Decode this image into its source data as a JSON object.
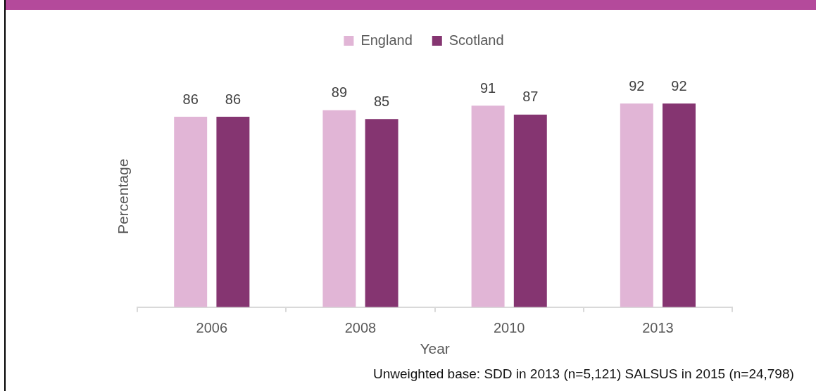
{
  "chart_data": {
    "type": "bar",
    "categories": [
      "2006",
      "2008",
      "2010",
      "2013"
    ],
    "series": [
      {
        "name": "England",
        "color": "#e1b5d6",
        "values": [
          86,
          89,
          91,
          92
        ]
      },
      {
        "name": "Scotland",
        "color": "#853571",
        "values": [
          86,
          85,
          87,
          92
        ]
      }
    ],
    "xlabel": "Year",
    "ylabel": "Percentage",
    "tick_labels": "x",
    "data_labels": true,
    "legend": "top",
    "annotations": [
      "Unweighted base: SDD in 2013 (n=5,121) SALSUS in 2015 (n=24,798)"
    ]
  }
}
